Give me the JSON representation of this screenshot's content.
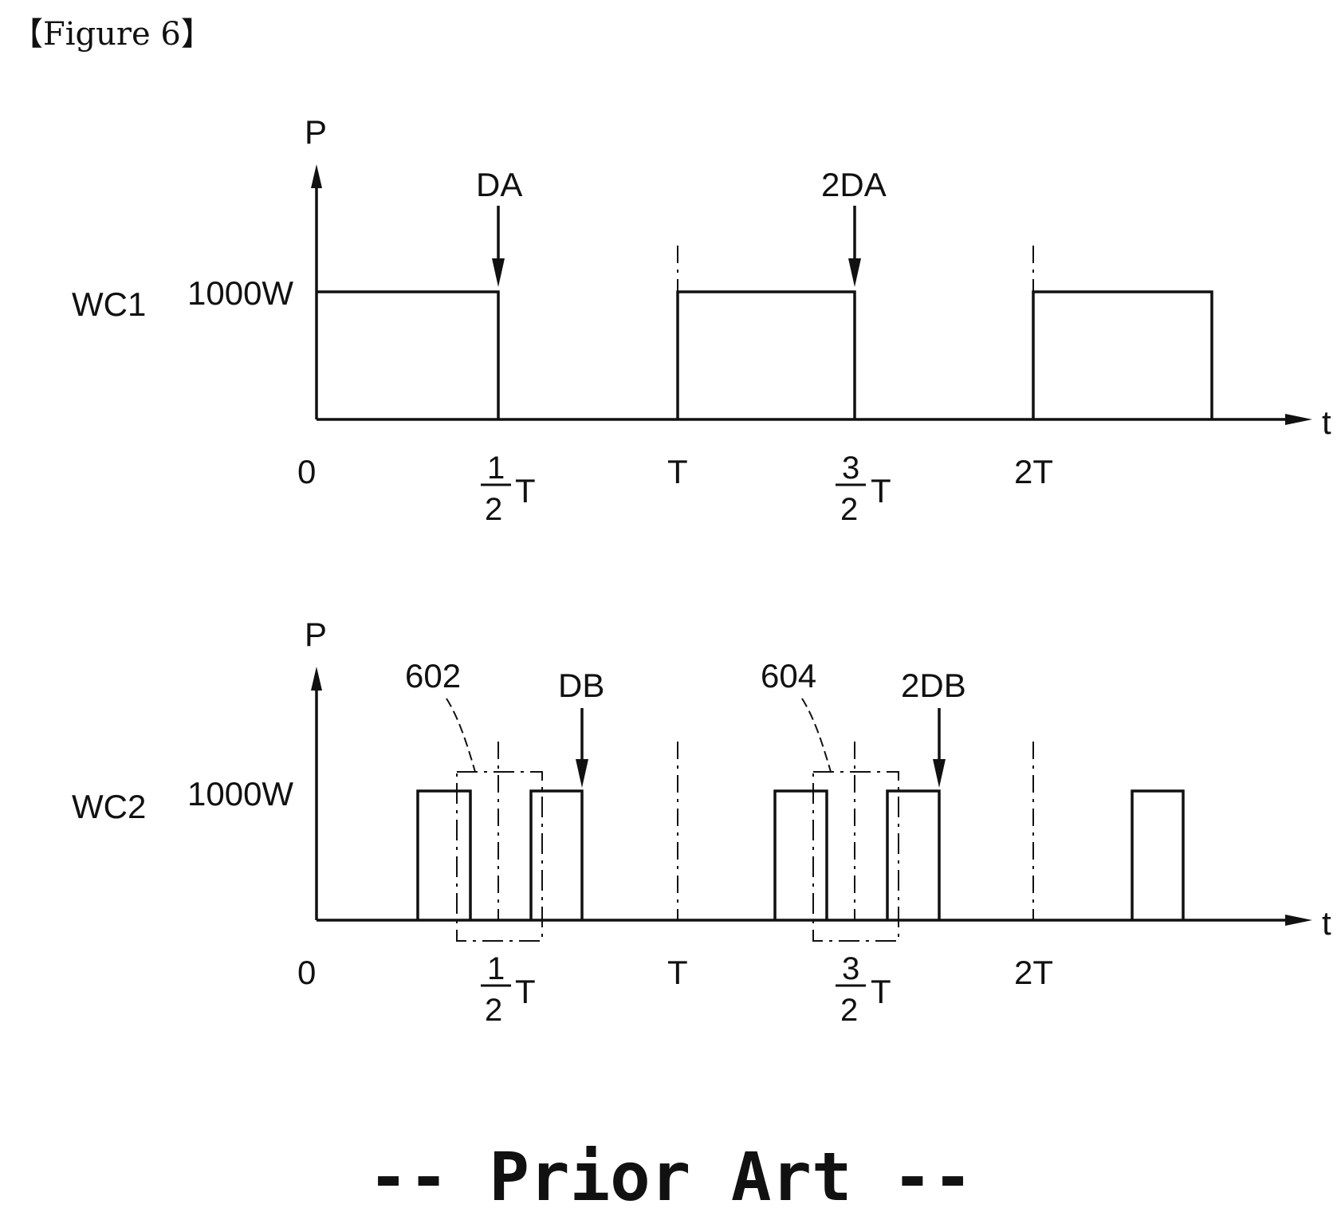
{
  "figure_label": "【Figure 6】",
  "footer": "-- Prior Art --",
  "y_axis_label": "P",
  "x_axis_label": "t",
  "ticks": {
    "zero": "0",
    "half": {
      "num": "1",
      "den": "2",
      "sym": "T"
    },
    "T": "T",
    "three_half": {
      "num": "3",
      "den": "2",
      "sym": "T"
    },
    "twoT": "2T"
  },
  "wc1": {
    "name": "WC1",
    "level": "1000W",
    "arrow1": "DA",
    "arrow2": "2DA"
  },
  "wc2": {
    "name": "WC2",
    "level": "1000W",
    "arrow1": "DB",
    "arrow2": "2DB",
    "ref1": "602",
    "ref2": "604"
  }
}
